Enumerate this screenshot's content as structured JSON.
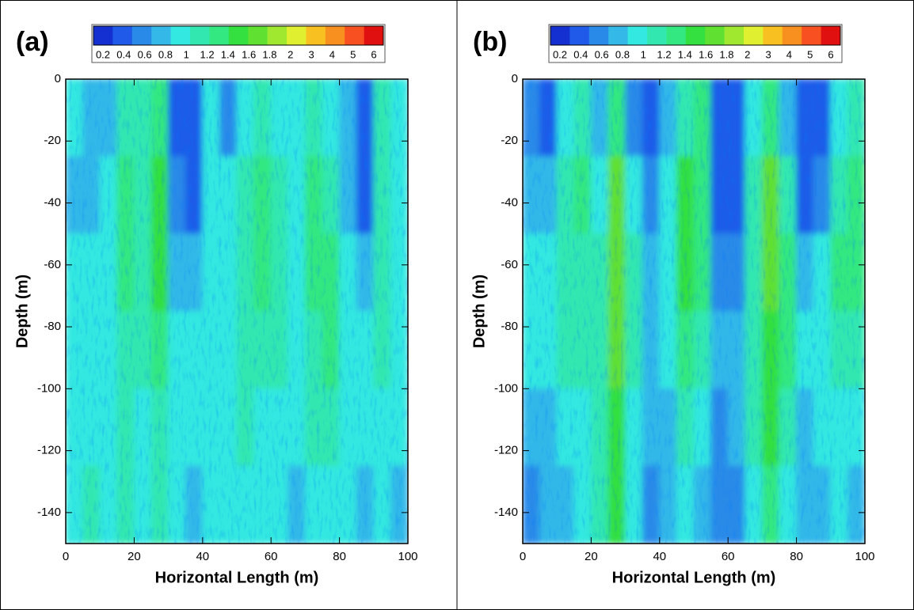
{
  "chart_data": [
    {
      "type": "heatmap",
      "panel_label": "(a)",
      "xlabel": "Horizontal Length (m)",
      "ylabel": "Depth (m)",
      "xlim": [
        0,
        100
      ],
      "ylim": [
        -150,
        0
      ],
      "xticks": [
        0,
        20,
        40,
        60,
        80,
        100
      ],
      "yticks": [
        0,
        -20,
        -40,
        -60,
        -80,
        -100,
        -120,
        -140
      ],
      "x_bins": [
        0,
        5,
        10,
        15,
        20,
        25,
        30,
        35,
        40,
        45,
        50,
        55,
        60,
        65,
        70,
        75,
        80,
        85,
        90,
        95,
        100
      ],
      "y_bins": [
        0,
        -25,
        -50,
        -75,
        -100,
        -125,
        -150
      ],
      "values": [
        [
          0.8,
          0.6,
          0.7,
          1.0,
          1.0,
          1.3,
          0.3,
          0.2,
          0.8,
          0.4,
          0.9,
          1.0,
          0.9,
          0.8,
          1.0,
          0.9,
          0.7,
          0.2,
          1.0,
          0.8
        ],
        [
          0.7,
          0.7,
          0.9,
          1.2,
          1.1,
          1.5,
          0.4,
          0.3,
          0.9,
          0.8,
          1.1,
          1.2,
          1.0,
          0.9,
          1.2,
          1.1,
          0.7,
          0.3,
          1.1,
          0.8
        ],
        [
          0.8,
          0.8,
          0.9,
          1.2,
          1.0,
          1.4,
          0.7,
          0.6,
          0.9,
          0.9,
          1.1,
          1.2,
          1.0,
          0.9,
          1.2,
          1.2,
          0.8,
          0.6,
          1.0,
          0.8
        ],
        [
          0.8,
          0.9,
          0.9,
          1.1,
          1.0,
          1.3,
          0.9,
          0.8,
          0.9,
          0.9,
          1.0,
          1.1,
          1.0,
          0.9,
          1.1,
          1.2,
          0.9,
          0.8,
          1.0,
          0.9
        ],
        [
          0.8,
          0.9,
          0.9,
          1.0,
          0.9,
          1.1,
          0.9,
          0.8,
          0.8,
          0.9,
          1.0,
          0.9,
          0.9,
          0.8,
          1.0,
          1.0,
          0.9,
          0.8,
          0.9,
          0.8
        ],
        [
          0.9,
          1.0,
          0.9,
          1.0,
          0.8,
          1.0,
          0.8,
          0.7,
          0.8,
          0.9,
          0.9,
          0.8,
          0.9,
          0.7,
          0.9,
          0.9,
          0.8,
          0.7,
          0.8,
          0.7
        ]
      ],
      "colorbar": {
        "levels": [
          0.2,
          0.4,
          0.6,
          0.8,
          1,
          1.2,
          1.4,
          1.6,
          1.8,
          2,
          3,
          4,
          5,
          6
        ],
        "colors": [
          "#1530d0",
          "#1f5be8",
          "#2a8ae8",
          "#33b8e8",
          "#33e8e0",
          "#33e8b0",
          "#33e880",
          "#33e040",
          "#60e030",
          "#a0e830",
          "#e0f030",
          "#f8c020",
          "#f89020",
          "#f85020",
          "#e01010"
        ]
      }
    },
    {
      "type": "heatmap",
      "panel_label": "(b)",
      "xlabel": "Horizontal Length (m)",
      "ylabel": "Depth (m)",
      "xlim": [
        0,
        100
      ],
      "ylim": [
        -150,
        0
      ],
      "xticks": [
        0,
        20,
        40,
        60,
        80,
        100
      ],
      "yticks": [
        0,
        -20,
        -40,
        -60,
        -80,
        -100,
        -120,
        -140
      ],
      "x_bins": [
        0,
        5,
        10,
        15,
        20,
        25,
        30,
        35,
        40,
        45,
        50,
        55,
        60,
        65,
        70,
        75,
        80,
        85,
        90,
        95,
        100
      ],
      "y_bins": [
        0,
        -25,
        -50,
        -75,
        -100,
        -125,
        -150
      ],
      "values": [
        [
          0.4,
          0.3,
          0.9,
          1.0,
          0.6,
          1.3,
          0.5,
          0.3,
          0.7,
          1.1,
          1.3,
          0.2,
          0.2,
          0.8,
          1.2,
          0.6,
          0.2,
          0.3,
          0.9,
          1.0
        ],
        [
          0.6,
          0.6,
          1.0,
          1.2,
          0.9,
          1.6,
          0.8,
          0.4,
          0.9,
          1.4,
          1.3,
          0.3,
          0.3,
          1.0,
          1.6,
          1.0,
          0.3,
          0.5,
          1.1,
          1.2
        ],
        [
          0.8,
          0.8,
          1.0,
          1.1,
          1.0,
          1.6,
          1.0,
          0.6,
          0.9,
          1.4,
          1.2,
          0.5,
          0.5,
          1.1,
          1.6,
          1.2,
          0.6,
          0.8,
          1.2,
          1.3
        ],
        [
          0.8,
          0.9,
          1.0,
          1.0,
          1.1,
          1.6,
          1.0,
          0.7,
          0.8,
          1.2,
          1.0,
          0.6,
          0.6,
          1.0,
          1.5,
          1.2,
          0.8,
          0.9,
          1.1,
          1.1
        ],
        [
          0.6,
          0.7,
          0.8,
          0.9,
          1.1,
          1.5,
          0.9,
          0.6,
          0.7,
          1.0,
          0.9,
          0.5,
          0.6,
          1.0,
          1.4,
          1.0,
          0.7,
          0.8,
          0.9,
          0.8
        ],
        [
          0.5,
          0.6,
          0.7,
          0.8,
          1.0,
          1.4,
          0.8,
          0.5,
          0.6,
          0.9,
          0.7,
          0.4,
          0.5,
          0.9,
          1.3,
          0.9,
          0.6,
          0.6,
          0.8,
          0.7
        ]
      ],
      "colorbar": {
        "levels": [
          0.2,
          0.4,
          0.6,
          0.8,
          1,
          1.2,
          1.4,
          1.6,
          1.8,
          2,
          3,
          4,
          5,
          6
        ],
        "colors": [
          "#1530d0",
          "#1f5be8",
          "#2a8ae8",
          "#33b8e8",
          "#33e8e0",
          "#33e8b0",
          "#33e880",
          "#33e040",
          "#60e030",
          "#a0e830",
          "#e0f030",
          "#f8c020",
          "#f89020",
          "#f85020",
          "#e01010"
        ]
      }
    }
  ]
}
